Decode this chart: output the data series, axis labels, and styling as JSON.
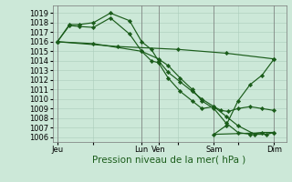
{
  "background_color": "#cce8d8",
  "grid_color": "#aaccbb",
  "line_color": "#1a5c1a",
  "ylim": [
    1005.5,
    1019.8
  ],
  "yticks": [
    1006,
    1007,
    1008,
    1009,
    1010,
    1011,
    1012,
    1013,
    1014,
    1015,
    1016,
    1017,
    1018,
    1019
  ],
  "xlabel": "Pression niveau de la mer( hPa )",
  "xlabel_fontsize": 7.5,
  "tick_fontsize": 6,
  "xtick_labels": [
    "Jeu",
    "",
    "Lun",
    "Ven",
    "",
    "Sam",
    "",
    "Dim"
  ],
  "xtick_positions": [
    0,
    1.5,
    3.5,
    4.2,
    5.0,
    6.5,
    7.5,
    9.0
  ],
  "xlim": [
    -0.2,
    9.5
  ],
  "line1_x": [
    0.0,
    0.5,
    0.9,
    1.5,
    2.2,
    3.0,
    3.5,
    3.9,
    4.2,
    4.6,
    5.1,
    5.6,
    6.0,
    6.5,
    6.8,
    7.1,
    7.5,
    8.0,
    8.5,
    9.0
  ],
  "line1_y": [
    1016.0,
    1017.8,
    1017.8,
    1018.0,
    1019.0,
    1018.2,
    1016.0,
    1015.2,
    1014.0,
    1012.8,
    1011.8,
    1010.8,
    1010.0,
    1009.2,
    1008.8,
    1008.7,
    1009.0,
    1009.2,
    1009.0,
    1008.8
  ],
  "line2_x": [
    0.0,
    0.5,
    0.9,
    1.5,
    2.2,
    3.0,
    3.5,
    3.9,
    4.2,
    4.6,
    5.1,
    5.6,
    6.0,
    6.5,
    7.0,
    7.5,
    8.2,
    8.7,
    9.0
  ],
  "line2_y": [
    1016.0,
    1017.7,
    1017.6,
    1017.5,
    1018.5,
    1016.8,
    1015.0,
    1014.0,
    1013.8,
    1012.2,
    1010.8,
    1009.8,
    1009.0,
    1009.2,
    1008.2,
    1007.2,
    1006.3,
    1006.3,
    1006.5
  ],
  "line3_x": [
    0.0,
    1.5,
    3.5,
    4.2,
    4.6,
    5.1,
    5.6,
    6.0,
    6.5,
    7.0,
    7.5,
    8.0,
    8.5,
    9.0
  ],
  "line3_y": [
    1016.0,
    1015.8,
    1015.0,
    1014.2,
    1013.5,
    1012.2,
    1011.0,
    1009.8,
    1009.0,
    1007.5,
    1006.5,
    1006.3,
    1006.5,
    1006.5
  ],
  "line4_x": [
    0.0,
    2.5,
    5.0,
    7.0,
    9.0
  ],
  "line4_y": [
    1016.0,
    1015.5,
    1015.2,
    1014.8,
    1014.2
  ],
  "vline_positions": [
    0,
    3.5,
    4.2,
    6.5,
    9.0
  ],
  "vline_color": "#777777",
  "recovery_x": [
    6.5,
    7.0,
    7.5,
    8.0,
    8.5,
    9.0
  ],
  "recovery_y": [
    1006.3,
    1007.2,
    1009.8,
    1011.5,
    1012.5,
    1014.2
  ]
}
